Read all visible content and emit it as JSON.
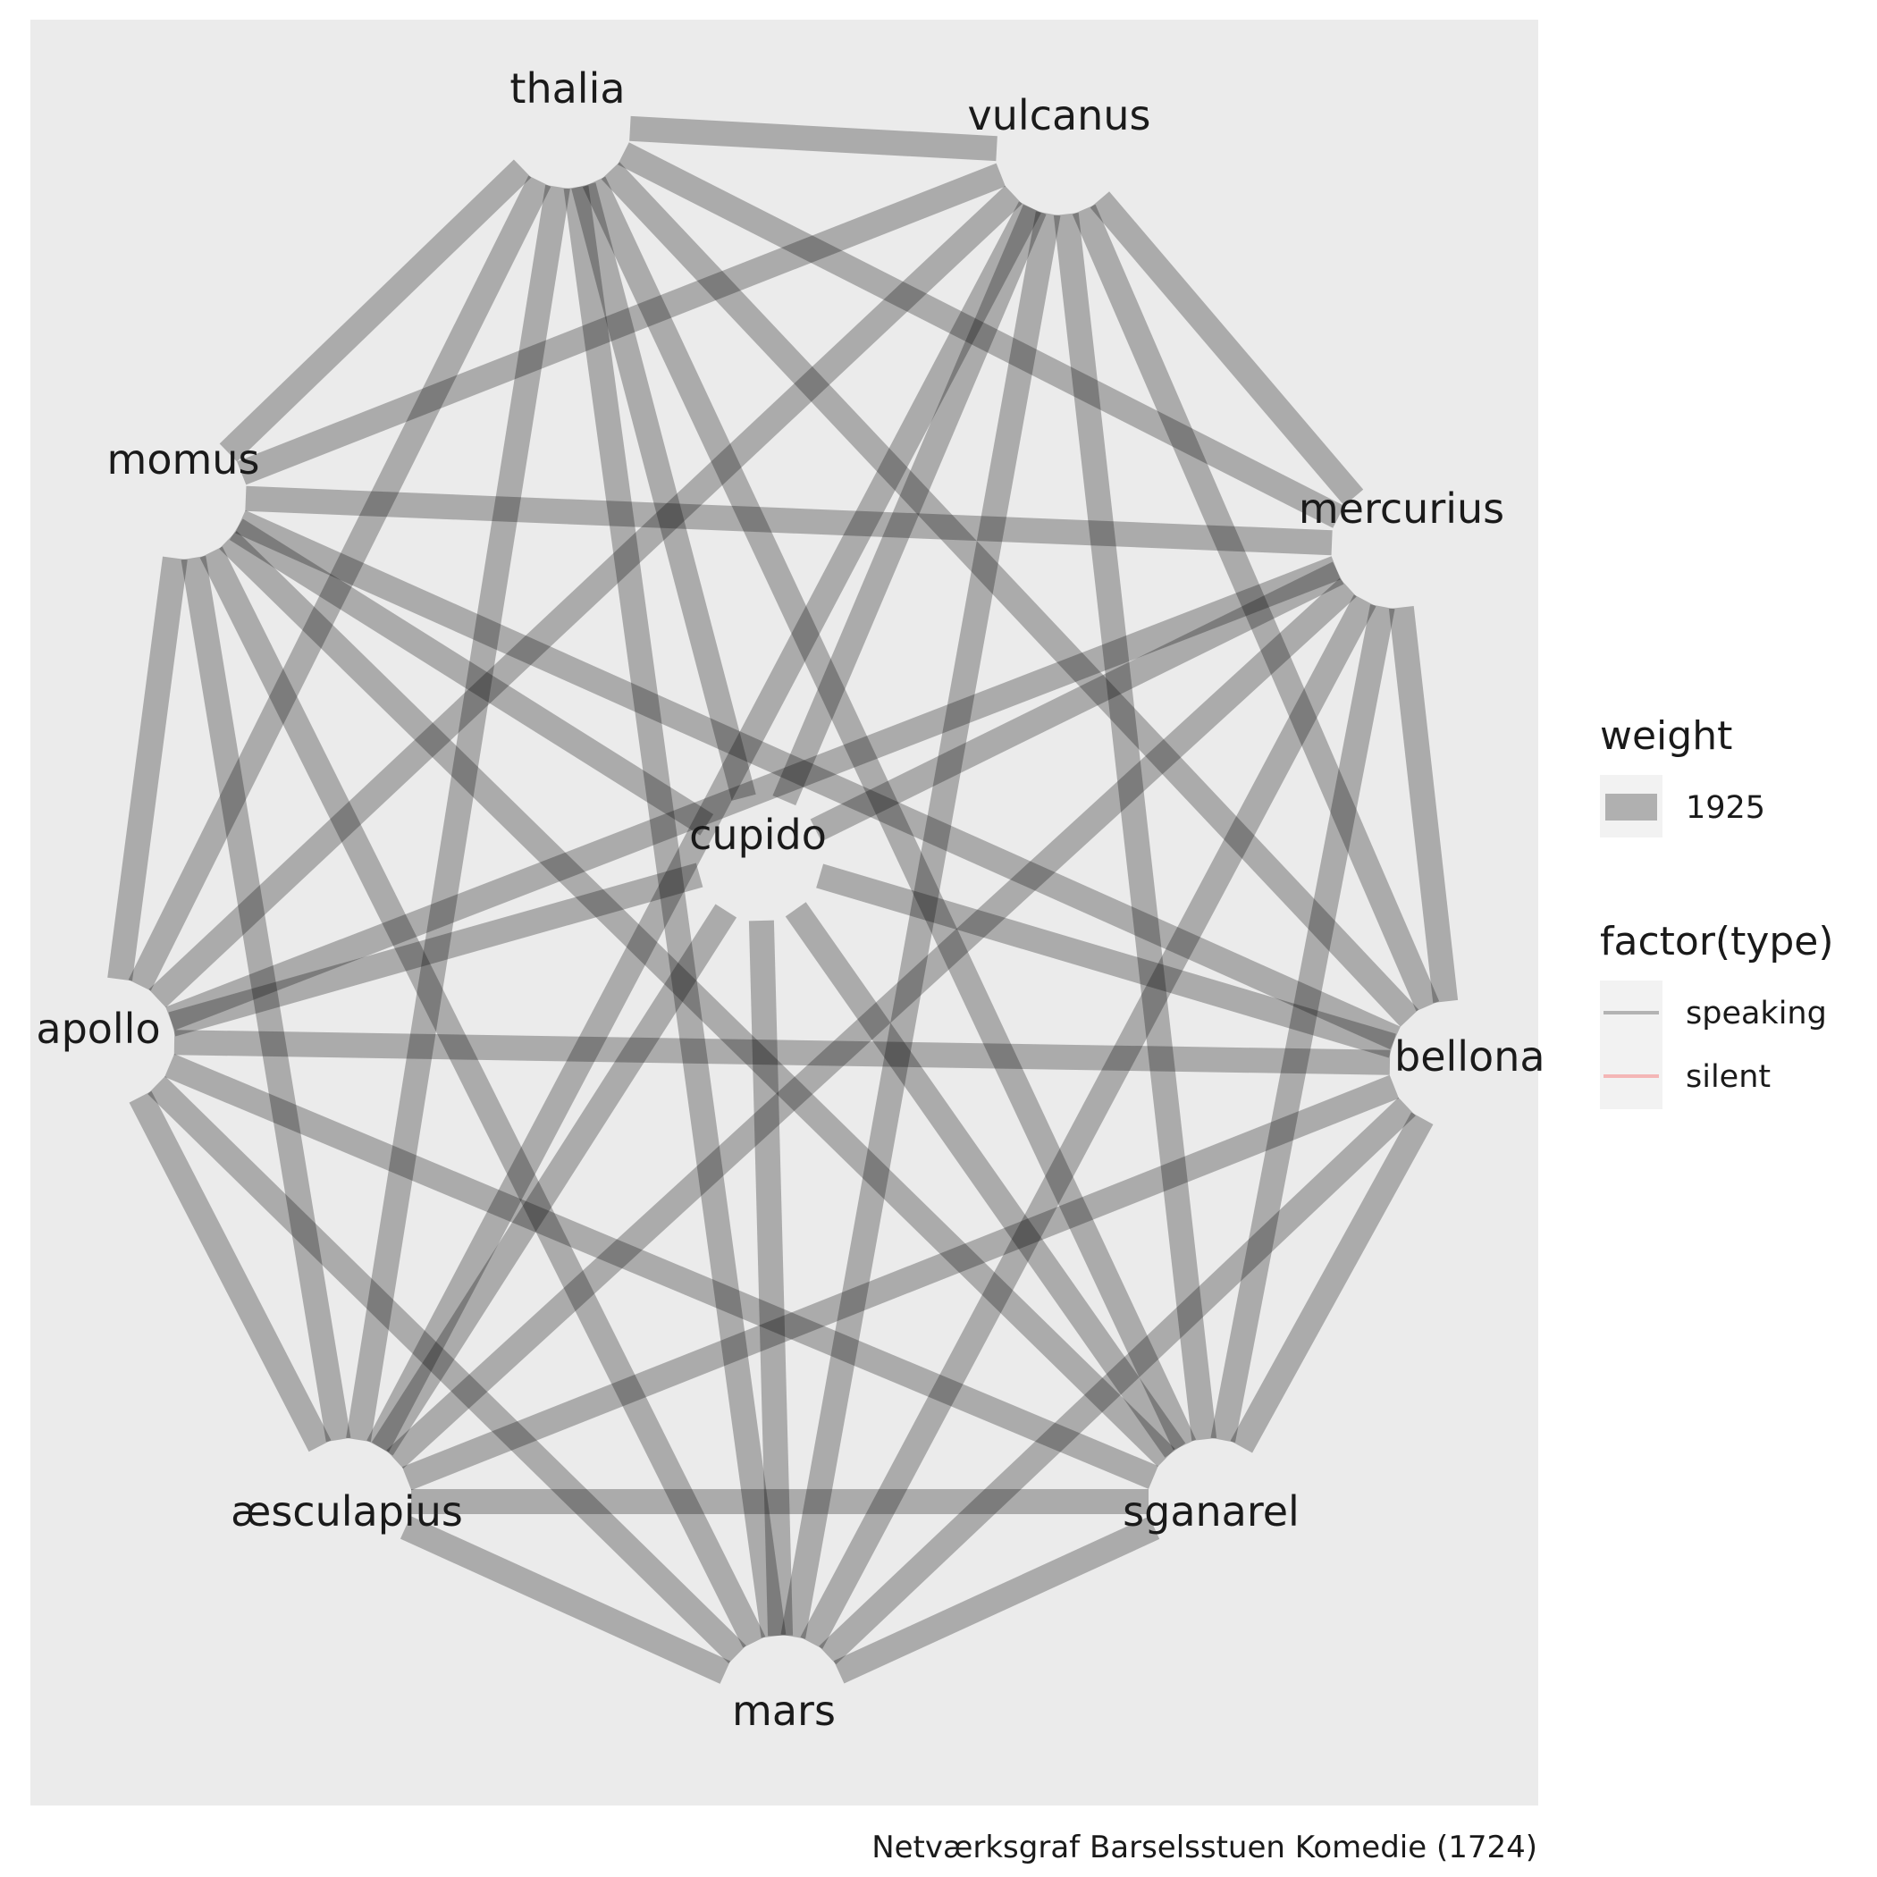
{
  "caption": "Netværksgraf Barselsstuen Komedie (1724)",
  "colors": {
    "panel_background": "#ebebeb",
    "edge": "#000000",
    "speaking": "#b3b3b3",
    "silent": "#f4b6b6",
    "legend_key_background": "#f2f2f2"
  },
  "legend": {
    "weight": {
      "title": "weight",
      "items": [
        {
          "label": "1925"
        }
      ]
    },
    "type": {
      "title": "factor(type)",
      "items": [
        {
          "label": "speaking"
        },
        {
          "label": "silent"
        }
      ]
    }
  },
  "nodes": [
    {
      "id": "thalia",
      "label": "thalia"
    },
    {
      "id": "vulcanus",
      "label": "vulcanus"
    },
    {
      "id": "momus",
      "label": "momus"
    },
    {
      "id": "mercurius",
      "label": "mercurius"
    },
    {
      "id": "cupido",
      "label": "cupido"
    },
    {
      "id": "apollo",
      "label": "apollo"
    },
    {
      "id": "bellona",
      "label": "bellona"
    },
    {
      "id": "aesculapius",
      "label": "æsculapius"
    },
    {
      "id": "sganarel",
      "label": "sganarel"
    },
    {
      "id": "mars",
      "label": "mars"
    }
  ],
  "edges": [
    {
      "source": "thalia",
      "target": "vulcanus",
      "weight": 1925,
      "type": "speaking"
    },
    {
      "source": "thalia",
      "target": "momus",
      "weight": 1925,
      "type": "speaking"
    },
    {
      "source": "thalia",
      "target": "mercurius",
      "weight": 1925,
      "type": "speaking"
    },
    {
      "source": "thalia",
      "target": "cupido",
      "weight": 1925,
      "type": "speaking"
    },
    {
      "source": "thalia",
      "target": "apollo",
      "weight": 1925,
      "type": "speaking"
    },
    {
      "source": "thalia",
      "target": "bellona",
      "weight": 1925,
      "type": "speaking"
    },
    {
      "source": "thalia",
      "target": "aesculapius",
      "weight": 1925,
      "type": "speaking"
    },
    {
      "source": "thalia",
      "target": "sganarel",
      "weight": 1925,
      "type": "speaking"
    },
    {
      "source": "thalia",
      "target": "mars",
      "weight": 1925,
      "type": "speaking"
    },
    {
      "source": "vulcanus",
      "target": "momus",
      "weight": 1925,
      "type": "speaking"
    },
    {
      "source": "vulcanus",
      "target": "mercurius",
      "weight": 1925,
      "type": "speaking"
    },
    {
      "source": "vulcanus",
      "target": "cupido",
      "weight": 1925,
      "type": "speaking"
    },
    {
      "source": "vulcanus",
      "target": "apollo",
      "weight": 1925,
      "type": "speaking"
    },
    {
      "source": "vulcanus",
      "target": "bellona",
      "weight": 1925,
      "type": "speaking"
    },
    {
      "source": "vulcanus",
      "target": "aesculapius",
      "weight": 1925,
      "type": "speaking"
    },
    {
      "source": "vulcanus",
      "target": "sganarel",
      "weight": 1925,
      "type": "speaking"
    },
    {
      "source": "vulcanus",
      "target": "mars",
      "weight": 1925,
      "type": "speaking"
    },
    {
      "source": "momus",
      "target": "mercurius",
      "weight": 1925,
      "type": "speaking"
    },
    {
      "source": "momus",
      "target": "cupido",
      "weight": 1925,
      "type": "speaking"
    },
    {
      "source": "momus",
      "target": "apollo",
      "weight": 1925,
      "type": "speaking"
    },
    {
      "source": "momus",
      "target": "bellona",
      "weight": 1925,
      "type": "speaking"
    },
    {
      "source": "momus",
      "target": "aesculapius",
      "weight": 1925,
      "type": "speaking"
    },
    {
      "source": "momus",
      "target": "sganarel",
      "weight": 1925,
      "type": "speaking"
    },
    {
      "source": "momus",
      "target": "mars",
      "weight": 1925,
      "type": "speaking"
    },
    {
      "source": "mercurius",
      "target": "cupido",
      "weight": 1925,
      "type": "speaking"
    },
    {
      "source": "mercurius",
      "target": "apollo",
      "weight": 1925,
      "type": "speaking"
    },
    {
      "source": "mercurius",
      "target": "bellona",
      "weight": 1925,
      "type": "speaking"
    },
    {
      "source": "mercurius",
      "target": "aesculapius",
      "weight": 1925,
      "type": "speaking"
    },
    {
      "source": "mercurius",
      "target": "sganarel",
      "weight": 1925,
      "type": "speaking"
    },
    {
      "source": "mercurius",
      "target": "mars",
      "weight": 1925,
      "type": "speaking"
    },
    {
      "source": "cupido",
      "target": "apollo",
      "weight": 1925,
      "type": "speaking"
    },
    {
      "source": "cupido",
      "target": "bellona",
      "weight": 1925,
      "type": "speaking"
    },
    {
      "source": "cupido",
      "target": "aesculapius",
      "weight": 1925,
      "type": "speaking"
    },
    {
      "source": "cupido",
      "target": "sganarel",
      "weight": 1925,
      "type": "speaking"
    },
    {
      "source": "cupido",
      "target": "mars",
      "weight": 1925,
      "type": "speaking"
    },
    {
      "source": "apollo",
      "target": "bellona",
      "weight": 1925,
      "type": "speaking"
    },
    {
      "source": "apollo",
      "target": "aesculapius",
      "weight": 1925,
      "type": "speaking"
    },
    {
      "source": "apollo",
      "target": "sganarel",
      "weight": 1925,
      "type": "speaking"
    },
    {
      "source": "apollo",
      "target": "mars",
      "weight": 1925,
      "type": "speaking"
    },
    {
      "source": "bellona",
      "target": "aesculapius",
      "weight": 1925,
      "type": "speaking"
    },
    {
      "source": "bellona",
      "target": "sganarel",
      "weight": 1925,
      "type": "speaking"
    },
    {
      "source": "bellona",
      "target": "mars",
      "weight": 1925,
      "type": "speaking"
    },
    {
      "source": "aesculapius",
      "target": "sganarel",
      "weight": 1925,
      "type": "speaking"
    },
    {
      "source": "aesculapius",
      "target": "mars",
      "weight": 1925,
      "type": "speaking"
    },
    {
      "source": "sganarel",
      "target": "mars",
      "weight": 1925,
      "type": "speaking"
    }
  ]
}
